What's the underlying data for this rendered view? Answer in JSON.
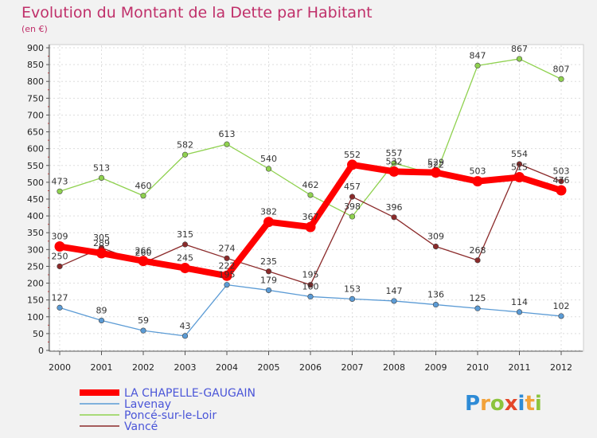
{
  "chart_data": {
    "type": "line",
    "title": "Evolution du Montant de la Dette par Habitant",
    "subtitle": "(en €)",
    "x": [
      "2000",
      "2001",
      "2002",
      "2003",
      "2004",
      "2005",
      "2006",
      "2007",
      "2008",
      "2009",
      "2010",
      "2011",
      "2012"
    ],
    "ylim": [
      0,
      900
    ],
    "yticks": [
      0,
      50,
      100,
      150,
      200,
      250,
      300,
      350,
      400,
      450,
      500,
      550,
      600,
      650,
      700,
      750,
      800,
      850,
      900
    ],
    "grid": true,
    "legend_position": "bottom-left",
    "series": [
      {
        "name": "LA CHAPELLE-GAUGAIN",
        "color": "#ff0000",
        "values": [
          309,
          289,
          266,
          245,
          222,
          382,
          367,
          552,
          532,
          529,
          503,
          515,
          476
        ]
      },
      {
        "name": "Lavenay",
        "color": "#5b9bd5",
        "values": [
          127,
          89,
          59,
          43,
          195,
          179,
          160,
          153,
          147,
          136,
          125,
          114,
          102
        ]
      },
      {
        "name": "Poncé-sur-le-Loir",
        "color": "#8fd14f",
        "values": [
          473,
          513,
          460,
          582,
          613,
          540,
          462,
          398,
          557,
          522,
          847,
          867,
          807
        ]
      },
      {
        "name": "Vancé",
        "color": "#8b2a2a",
        "values": [
          250,
          305,
          260,
          315,
          274,
          235,
          195,
          457,
          396,
          309,
          268,
          554,
          503
        ]
      }
    ]
  },
  "logo": {
    "text": "Proxiti",
    "colors": [
      "#2e8bd6",
      "#f2a23a",
      "#8cc43d",
      "#e4472a",
      "#2e8bd6",
      "#f2a23a",
      "#8cc43d"
    ]
  }
}
